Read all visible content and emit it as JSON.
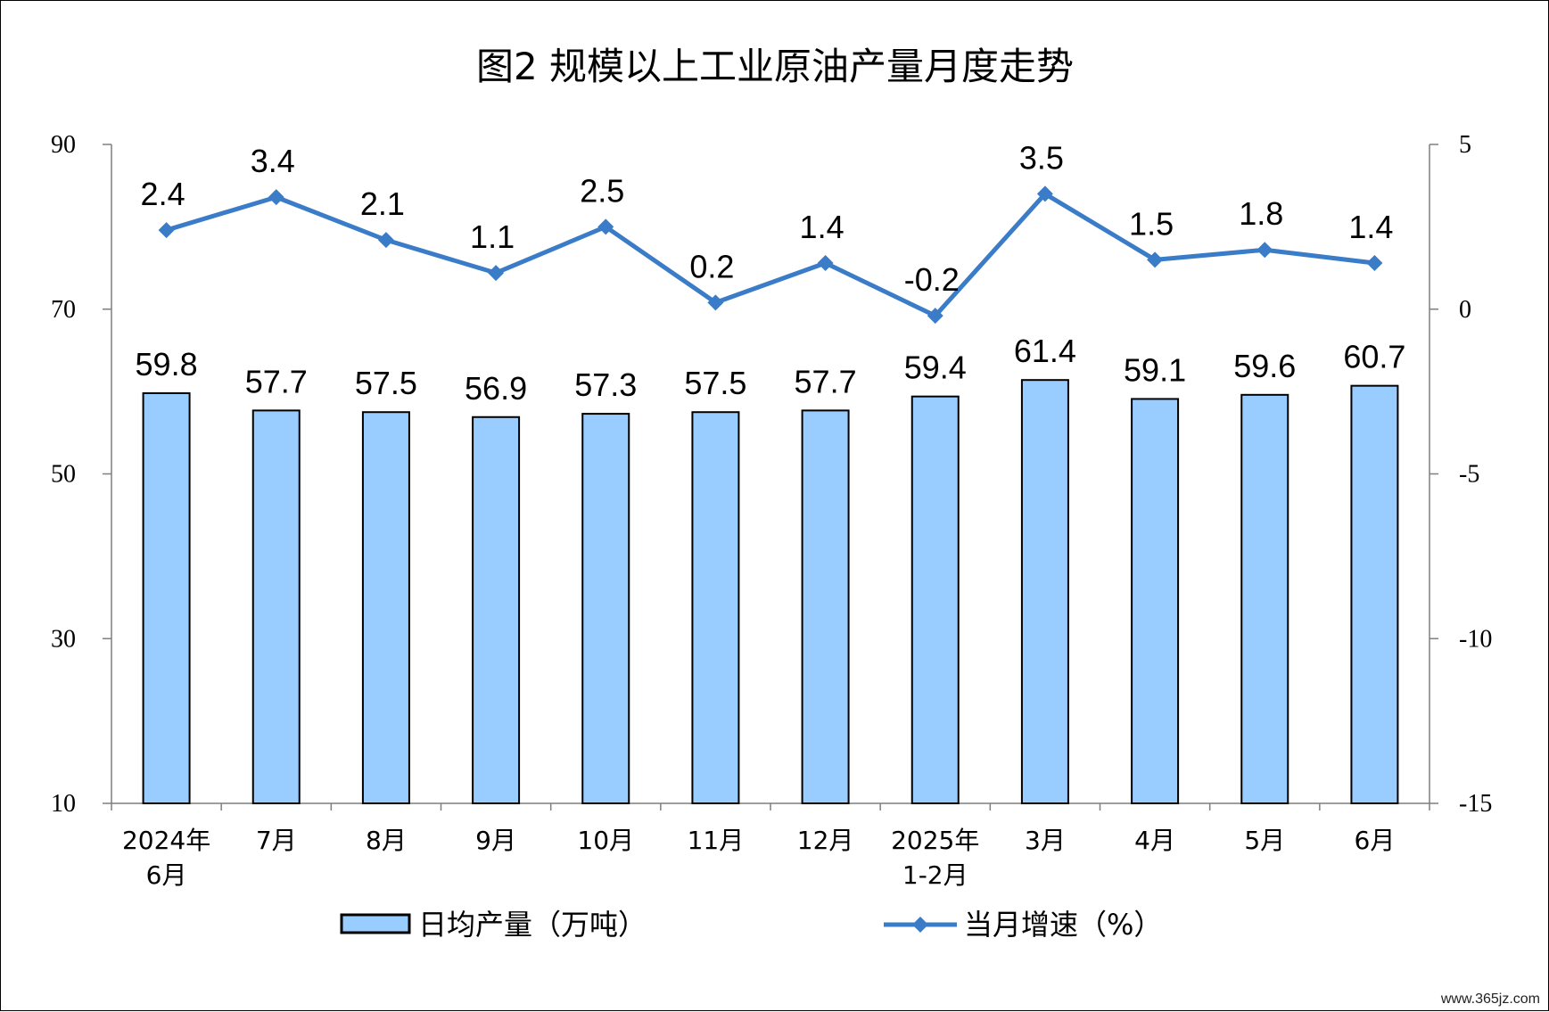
{
  "chart_data": {
    "type": "bar",
    "title": "图2  规模以上工业原油产量月度走势",
    "categories": [
      [
        "2024年",
        "6月"
      ],
      [
        "7月"
      ],
      [
        "8月"
      ],
      [
        "9月"
      ],
      [
        "10月"
      ],
      [
        "11月"
      ],
      [
        "12月"
      ],
      [
        "2025年",
        "1-2月"
      ],
      [
        "3月"
      ],
      [
        "4月"
      ],
      [
        "5月"
      ],
      [
        "6月"
      ]
    ],
    "series": [
      {
        "name": "日均产量（万吨）",
        "type": "bar",
        "axis": "left",
        "values": [
          59.8,
          57.7,
          57.5,
          56.9,
          57.3,
          57.5,
          57.7,
          59.4,
          61.4,
          59.1,
          59.6,
          60.7
        ],
        "labels": [
          "59.8",
          "57.7",
          "57.5",
          "56.9",
          "57.3",
          "57.5",
          "57.7",
          "59.4",
          "61.4",
          "59.1",
          "59.6",
          "60.7"
        ],
        "color": "#99CCFF"
      },
      {
        "name": "当月增速（%）",
        "type": "line",
        "axis": "right",
        "values": [
          2.4,
          3.4,
          2.1,
          1.1,
          2.5,
          0.2,
          1.4,
          -0.2,
          3.5,
          1.5,
          1.8,
          1.4
        ],
        "labels": [
          "2.4",
          "3.4",
          "2.1",
          "1.1",
          "2.5",
          "0.2",
          "1.4",
          "-0.2",
          "3.5",
          "1.5",
          "1.8",
          "1.4"
        ],
        "color": "#3A7CC7"
      }
    ],
    "y_left": {
      "range": [
        10,
        90
      ],
      "ticks": [
        10,
        30,
        50,
        70,
        90
      ],
      "tick_labels": [
        "10",
        "30",
        "50",
        "70",
        "90"
      ]
    },
    "y_right": {
      "range": [
        -15,
        5
      ],
      "ticks": [
        -15,
        -10,
        -5,
        0,
        5
      ],
      "tick_labels": [
        "-15",
        "-10",
        "-5",
        "0",
        "5"
      ]
    },
    "grid": false,
    "legend_position": "bottom"
  },
  "watermark": "www.365jz.com"
}
